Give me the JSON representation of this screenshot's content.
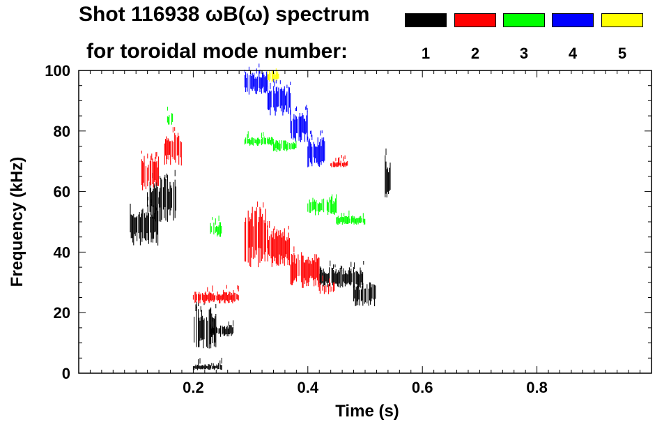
{
  "title_line1": "Shot 116938 ωB(ω) spectrum",
  "title_line2": "for toroidal mode number:",
  "legend": [
    {
      "label": "1",
      "color": "#000000"
    },
    {
      "label": "2",
      "color": "#ff0000"
    },
    {
      "label": "3",
      "color": "#00ff00"
    },
    {
      "label": "4",
      "color": "#0000ff"
    },
    {
      "label": "5",
      "color": "#ffff00"
    }
  ],
  "chart_data": {
    "type": "heatmap",
    "title": "Shot 116938 ωB(ω) spectrum",
    "xlabel": "Time (s)",
    "ylabel": "Frequency (kHz)",
    "xlim": [
      0.0,
      1.0
    ],
    "ylim": [
      0,
      100
    ],
    "xticks": [
      0.2,
      0.4,
      0.6,
      0.8
    ],
    "xtick_labels": [
      "0.2",
      "0.4",
      "0.6",
      "0.8"
    ],
    "yticks": [
      0,
      20,
      40,
      60,
      80,
      100
    ],
    "ytick_labels": [
      "0",
      "20",
      "40",
      "60",
      "80",
      "100"
    ],
    "series": [
      {
        "name": "n=1",
        "color": "#000000",
        "regions": [
          {
            "t": [
              0.09,
              0.14
            ],
            "f": [
              42,
              56
            ]
          },
          {
            "t": [
              0.12,
              0.17
            ],
            "f": [
              50,
              65
            ]
          },
          {
            "t": [
              0.2,
              0.24
            ],
            "f": [
              8,
              22
            ]
          },
          {
            "t": [
              0.23,
              0.27
            ],
            "f": [
              12,
              16
            ]
          },
          {
            "t": [
              0.2,
              0.25
            ],
            "f": [
              1,
              3
            ]
          },
          {
            "t": [
              0.42,
              0.5
            ],
            "f": [
              28,
              35
            ]
          },
          {
            "t": [
              0.48,
              0.52
            ],
            "f": [
              22,
              30
            ]
          },
          {
            "t": [
              0.535,
              0.545
            ],
            "f": [
              55,
              72
            ]
          }
        ]
      },
      {
        "name": "n=2",
        "color": "#ff0000",
        "regions": [
          {
            "t": [
              0.11,
              0.14
            ],
            "f": [
              60,
              72
            ]
          },
          {
            "t": [
              0.15,
              0.18
            ],
            "f": [
              68,
              80
            ]
          },
          {
            "t": [
              0.29,
              0.33
            ],
            "f": [
              35,
              55
            ]
          },
          {
            "t": [
              0.33,
              0.37
            ],
            "f": [
              35,
              48
            ]
          },
          {
            "t": [
              0.37,
              0.42
            ],
            "f": [
              28,
              40
            ]
          },
          {
            "t": [
              0.42,
              0.45
            ],
            "f": [
              26,
              30
            ]
          },
          {
            "t": [
              0.2,
              0.28
            ],
            "f": [
              23,
              27
            ]
          },
          {
            "t": [
              0.44,
              0.47
            ],
            "f": [
              68,
              70
            ]
          }
        ]
      },
      {
        "name": "n=3",
        "color": "#00ff00",
        "regions": [
          {
            "t": [
              0.29,
              0.34
            ],
            "f": [
              75,
              78
            ]
          },
          {
            "t": [
              0.34,
              0.38
            ],
            "f": [
              73,
              77
            ]
          },
          {
            "t": [
              0.4,
              0.45
            ],
            "f": [
              52,
              58
            ]
          },
          {
            "t": [
              0.45,
              0.5
            ],
            "f": [
              49,
              52
            ]
          },
          {
            "t": [
              0.23,
              0.25
            ],
            "f": [
              45,
              50
            ]
          },
          {
            "t": [
              0.155,
              0.165
            ],
            "f": [
              82,
              86
            ]
          }
        ]
      },
      {
        "name": "n=4",
        "color": "#0000ff",
        "regions": [
          {
            "t": [
              0.29,
              0.33
            ],
            "f": [
              92,
              100
            ]
          },
          {
            "t": [
              0.33,
              0.37
            ],
            "f": [
              85,
              95
            ]
          },
          {
            "t": [
              0.37,
              0.4
            ],
            "f": [
              76,
              87
            ]
          },
          {
            "t": [
              0.4,
              0.43
            ],
            "f": [
              68,
              78
            ]
          }
        ]
      },
      {
        "name": "n=5",
        "color": "#ffff00",
        "regions": [
          {
            "t": [
              0.33,
              0.35
            ],
            "f": [
              96,
              100
            ]
          }
        ]
      }
    ]
  }
}
